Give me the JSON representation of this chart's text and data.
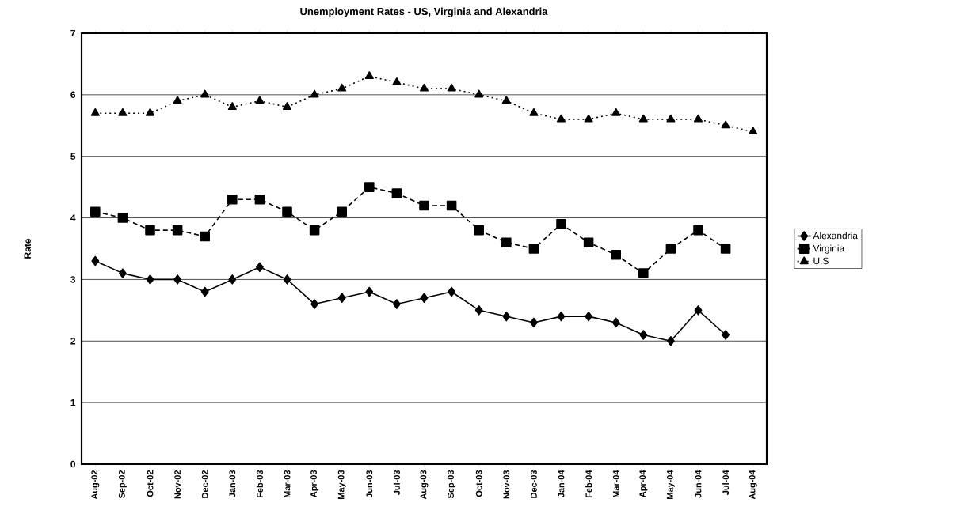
{
  "chart_data": {
    "type": "line",
    "title": "Unemployment Rates - US, Virginia and Alexandria",
    "ylabel": "Rate",
    "categories": [
      "Aug-02",
      "Sep-02",
      "Oct-02",
      "Nov-02",
      "Dec-02",
      "Jan-03",
      "Feb-03",
      "Mar-03",
      "Apr-03",
      "May-03",
      "Jun-03",
      "Jul-03",
      "Aug-03",
      "Sep-03",
      "Oct-03",
      "Nov-03",
      "Dec-03",
      "Jan-04",
      "Feb-04",
      "Mar-04",
      "Apr-04",
      "May-04",
      "Jun-04",
      "Jul-04",
      "Aug-04"
    ],
    "series": [
      {
        "name": "Alexandria",
        "color": "#000000",
        "marker": "diamond",
        "line_style": "solid",
        "values": [
          3.3,
          3.1,
          3.0,
          3.0,
          2.8,
          3.0,
          3.2,
          3.0,
          2.6,
          2.7,
          2.8,
          2.6,
          2.7,
          2.8,
          2.5,
          2.4,
          2.3,
          2.4,
          2.4,
          2.3,
          2.1,
          2.0,
          2.5,
          2.1,
          null
        ]
      },
      {
        "name": "Virginia",
        "color": "#000000",
        "marker": "square",
        "line_style": "dashed",
        "values": [
          4.1,
          4.0,
          3.8,
          3.8,
          3.7,
          4.3,
          4.3,
          4.1,
          3.8,
          4.1,
          4.5,
          4.4,
          4.2,
          4.2,
          3.8,
          3.6,
          3.5,
          3.9,
          3.6,
          3.4,
          3.1,
          3.5,
          3.8,
          3.5,
          null
        ]
      },
      {
        "name": "U.S",
        "color": "#000000",
        "marker": "triangle",
        "line_style": "dotted",
        "values": [
          5.7,
          5.7,
          5.7,
          5.9,
          6.0,
          5.8,
          5.9,
          5.8,
          6.0,
          6.1,
          6.3,
          6.2,
          6.1,
          6.1,
          6.0,
          5.9,
          5.7,
          5.6,
          5.6,
          5.7,
          5.6,
          5.6,
          5.6,
          5.5,
          5.4
        ]
      }
    ],
    "ylim": [
      0,
      7
    ],
    "yticks": [
      0,
      1,
      2,
      3,
      4,
      5,
      6,
      7
    ],
    "grid": "y",
    "legend": "right"
  }
}
